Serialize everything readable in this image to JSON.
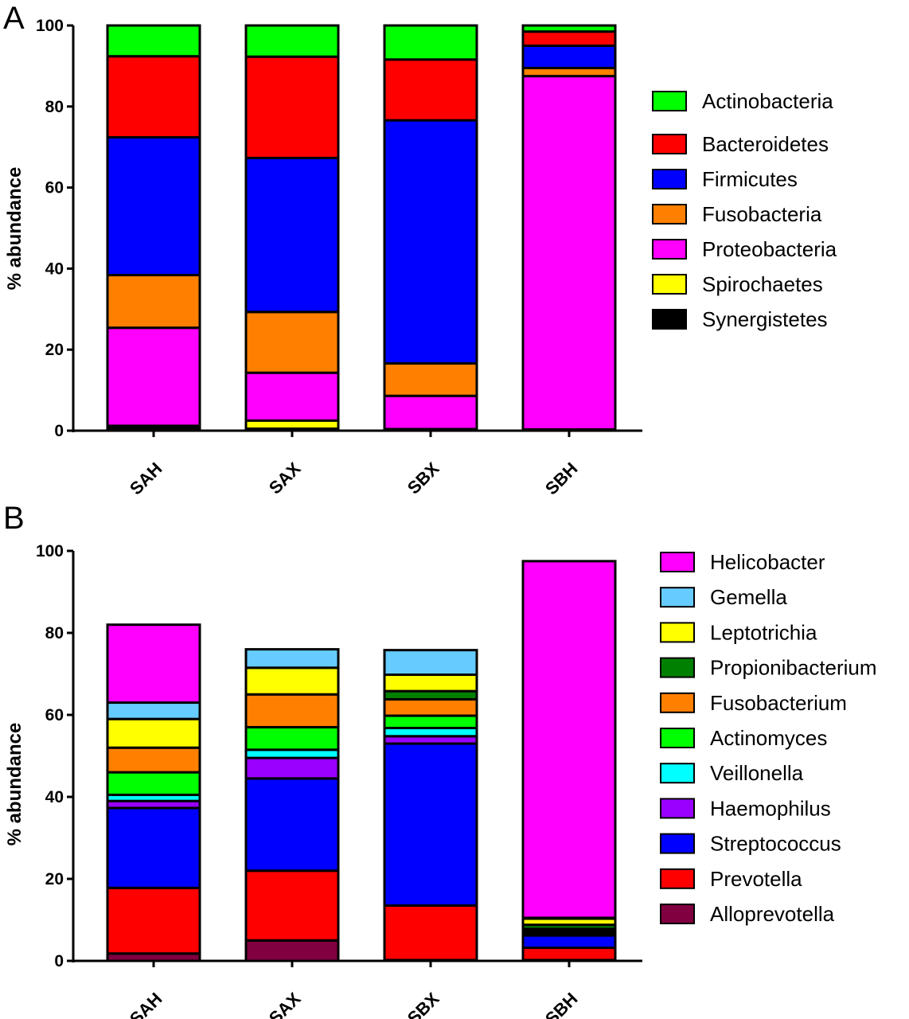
{
  "chart_data": [
    {
      "type": "bar",
      "stacked": true,
      "panel": "A",
      "ylabel": "% abundance",
      "ylim": [
        0,
        100
      ],
      "yticks": [
        "0",
        "20",
        "40",
        "60",
        "80",
        "100"
      ],
      "categories": [
        "SAH",
        "SAX",
        "SBX",
        "SBH"
      ],
      "legend_position": "right",
      "stack_order": [
        "Synergistetes",
        "Spirochaetes",
        "Proteobacteria",
        "Fusobacteria",
        "Firmicutes",
        "Bacteroidetes",
        "Actinobacteria"
      ],
      "legend_order": [
        "Actinobacteria",
        "Bacteroidetes",
        "Firmicutes",
        "Fusobacteria",
        "Proteobacteria",
        "Spirochaetes",
        "Synergistetes"
      ],
      "series": [
        {
          "name": "Synergistetes",
          "color": "#000000",
          "values": [
            1.0,
            0.5,
            0.2,
            0.2
          ]
        },
        {
          "name": "Spirochaetes",
          "color": "#ffff00",
          "values": [
            0.2,
            2.0,
            0.2,
            0.1
          ]
        },
        {
          "name": "Proteobacteria",
          "color": "#ff00ff",
          "values": [
            24.2,
            11.8,
            8.2,
            87.2
          ]
        },
        {
          "name": "Fusobacteria",
          "color": "#ff8000",
          "values": [
            13.0,
            15.0,
            8.0,
            2.0
          ]
        },
        {
          "name": "Firmicutes",
          "color": "#0000ff",
          "values": [
            34.0,
            38.0,
            60.0,
            5.5
          ]
        },
        {
          "name": "Bacteroidetes",
          "color": "#ff0000",
          "values": [
            20.0,
            25.0,
            15.0,
            3.5
          ]
        },
        {
          "name": "Actinobacteria",
          "color": "#00ff00",
          "values": [
            7.6,
            7.7,
            8.4,
            1.5
          ]
        }
      ]
    },
    {
      "type": "bar",
      "stacked": true,
      "panel": "B",
      "ylabel": "% abundance",
      "ylim": [
        0,
        100
      ],
      "yticks": [
        "0",
        "20",
        "40",
        "60",
        "80",
        "100"
      ],
      "categories": [
        "SAH",
        "SAX",
        "SBX",
        "SBH"
      ],
      "legend_position": "right",
      "stack_order": [
        "Alloprevotella",
        "Prevotella",
        "Streptococcus",
        "Haemophilus",
        "Veillonella",
        "Actinomyces",
        "Fusobacterium",
        "Propionibacterium",
        "Leptotrichia",
        "Gemella",
        "Helicobacter"
      ],
      "legend_order": [
        "Helicobacter",
        "Gemella",
        "Leptotrichia",
        "Propionibacterium",
        "Fusobacterium",
        "Actinomyces",
        "Veillonella",
        "Haemophilus",
        "Streptococcus",
        "Prevotella",
        "Alloprevotella"
      ],
      "series": [
        {
          "name": "Alloprevotella",
          "color": "#800040",
          "values": [
            1.8,
            5.0,
            0.2,
            0.2
          ]
        },
        {
          "name": "Prevotella",
          "color": "#ff0000",
          "values": [
            16.0,
            17.0,
            13.3,
            3.0
          ]
        },
        {
          "name": "Streptococcus",
          "color": "#0000ff",
          "values": [
            19.5,
            22.5,
            39.5,
            3.0
          ]
        },
        {
          "name": "Haemophilus",
          "color": "#9900ff",
          "values": [
            1.7,
            5.0,
            1.8,
            0.3
          ]
        },
        {
          "name": "Veillonella",
          "color": "#00ffff",
          "values": [
            1.5,
            2.0,
            2.0,
            0.3
          ]
        },
        {
          "name": "Actinomyces",
          "color": "#00ff00",
          "values": [
            5.5,
            5.5,
            3.0,
            0.5
          ]
        },
        {
          "name": "Fusobacterium",
          "color": "#ff8000",
          "values": [
            6.0,
            8.0,
            4.0,
            0.5
          ]
        },
        {
          "name": "Propionibacterium",
          "color": "#008000",
          "values": [
            0.0,
            0.0,
            2.0,
            1.0
          ]
        },
        {
          "name": "Leptotrichia",
          "color": "#ffff00",
          "values": [
            7.0,
            6.5,
            4.0,
            1.5
          ]
        },
        {
          "name": "Gemella",
          "color": "#66ccff",
          "values": [
            4.0,
            4.5,
            6.0,
            0.2
          ]
        },
        {
          "name": "Helicobacter",
          "color": "#ff00ff",
          "values": [
            19.0,
            0.0,
            0.0,
            87.0
          ]
        }
      ]
    }
  ]
}
